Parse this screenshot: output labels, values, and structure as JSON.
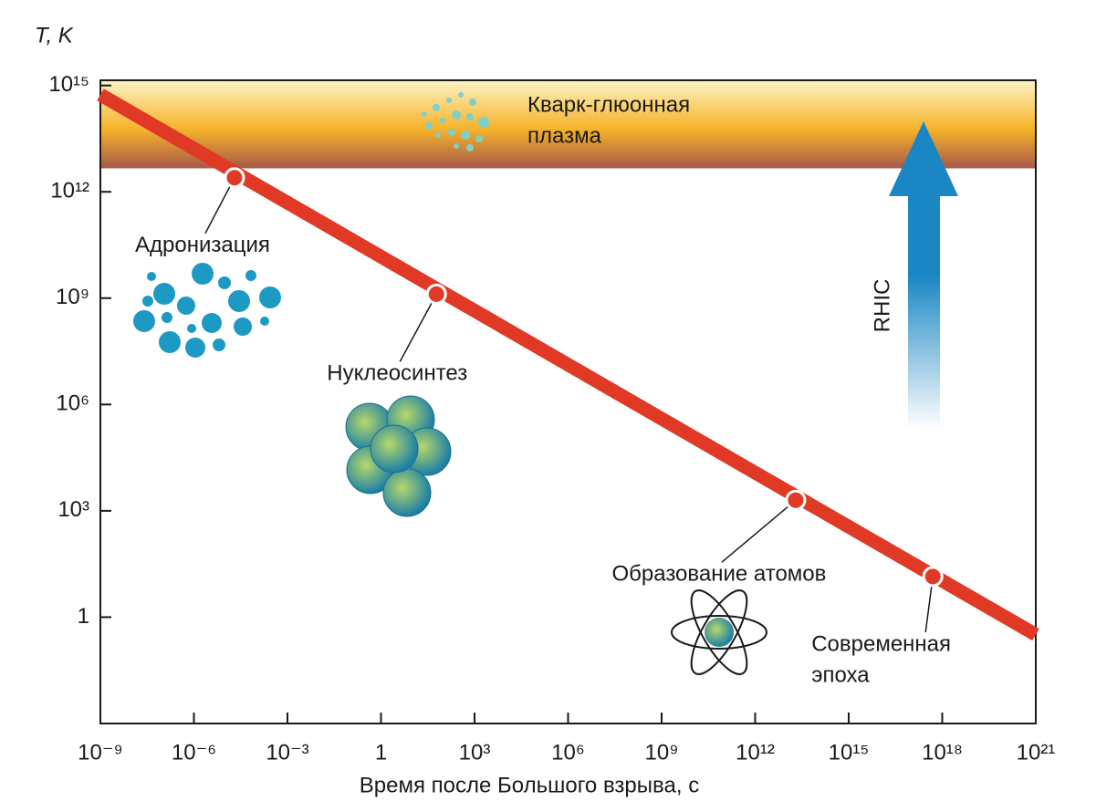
{
  "chart_data": {
    "type": "line",
    "ylabel": "T, K",
    "xlabel": "Время после Большого взрыва, с",
    "log_x": true,
    "log_y": true,
    "xlim": [
      1e-09,
      1e+21
    ],
    "ylim": [
      0.001,
      1400000000000000.0
    ],
    "xticks": [
      {
        "value": 1e-09,
        "label": "10⁻⁹"
      },
      {
        "value": 1e-06,
        "label": "10⁻⁶"
      },
      {
        "value": 0.001,
        "label": "10⁻³"
      },
      1,
      {
        "value": 1000,
        "label": "10³"
      },
      {
        "value": 1000000.0,
        "label": "10⁶"
      },
      {
        "value": 1000000000.0,
        "label": "10⁹"
      },
      {
        "value": 1000000000000.0,
        "label": "10¹²"
      },
      {
        "value": 1000000000000000.0,
        "label": "10¹⁵"
      },
      {
        "value": 1e+18,
        "label": "10¹⁸"
      },
      {
        "value": 1e+21,
        "label": "10²¹"
      }
    ],
    "yticks": [
      1,
      {
        "value": 1000,
        "label": "10³"
      },
      {
        "value": 1000000.0,
        "label": "10⁶"
      },
      {
        "value": 1000000000.0,
        "label": "10⁹"
      },
      {
        "value": 1000000000000.0,
        "label": "10¹²"
      },
      {
        "value": 1000000000000000.0,
        "label": "10¹⁵"
      }
    ],
    "series": [
      {
        "color": "#e03a26",
        "x": [
          1e-09,
          1e+21
        ],
        "y": [
          550000000000000.0,
          0.32
        ]
      }
    ],
    "band": {
      "lines": [
        "Кварк-глюонная",
        "плазма"
      ],
      "ymin": 4600000000000.0
    },
    "arrow_label": "RHIC",
    "annotations": [
      {
        "lines": [
          "Адронизация"
        ],
        "x": 2e-05,
        "y": 2500000000000.0
      },
      {
        "lines": [
          "Нуклеосинтез"
        ],
        "x": 60,
        "y": 1300000000.0
      },
      {
        "lines": [
          "Образование атомов"
        ],
        "x": 20000000000000.0,
        "y": 2000
      },
      {
        "lines": [
          "Современная",
          "эпоха"
        ],
        "x": 5e+17,
        "y": 14
      }
    ]
  }
}
